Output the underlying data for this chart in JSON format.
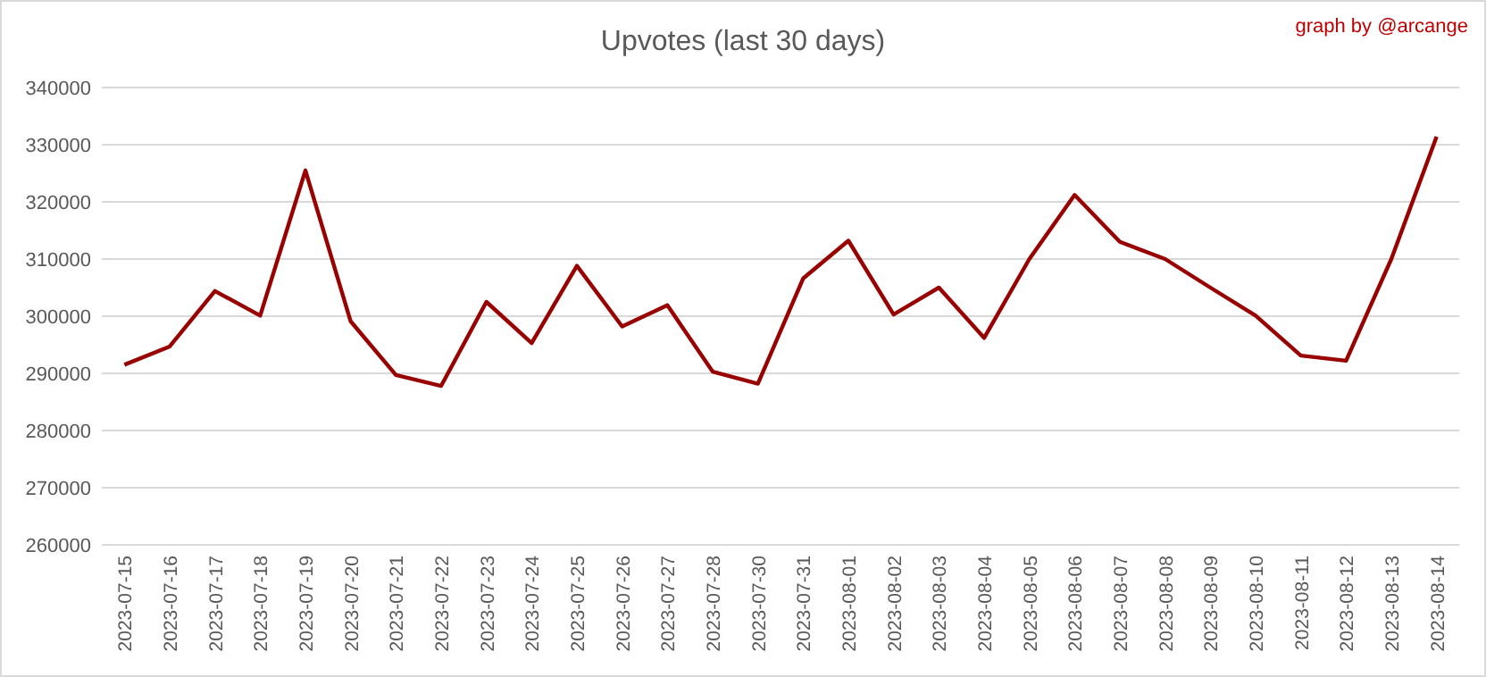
{
  "chart_data": {
    "type": "line",
    "title": "Upvotes (last 30 days)",
    "annotations": [
      "graph by @arcange"
    ],
    "categories": [
      "2023-07-15",
      "2023-07-16",
      "2023-07-17",
      "2023-07-18",
      "2023-07-19",
      "2023-07-20",
      "2023-07-21",
      "2023-07-22",
      "2023-07-23",
      "2023-07-24",
      "2023-07-25",
      "2023-07-26",
      "2023-07-27",
      "2023-07-28",
      "2023-07-30",
      "2023-07-31",
      "2023-08-01",
      "2023-08-02",
      "2023-08-03",
      "2023-08-04",
      "2023-08-05",
      "2023-08-06",
      "2023-08-07",
      "2023-08-08",
      "2023-08-09",
      "2023-08-10",
      "2023-08-11",
      "2023-08-12",
      "2023-08-13",
      "2023-08-14"
    ],
    "series": [
      {
        "color": "#990000",
        "values": [
          291500,
          294700,
          304400,
          300100,
          325500,
          299100,
          289700,
          287800,
          302500,
          295300,
          308800,
          298200,
          301900,
          290300,
          288200,
          306600,
          313200,
          300300,
          305000,
          296200,
          310000,
          321200,
          313000,
          310000,
          305000,
          300100,
          293100,
          292200,
          310000,
          331400
        ]
      }
    ],
    "ylim": [
      260000,
      340000
    ],
    "yticks": [
      260000,
      270000,
      280000,
      290000,
      300000,
      310000,
      320000,
      330000,
      340000
    ],
    "grid": "y",
    "marker": "none",
    "line_style": "solid"
  }
}
